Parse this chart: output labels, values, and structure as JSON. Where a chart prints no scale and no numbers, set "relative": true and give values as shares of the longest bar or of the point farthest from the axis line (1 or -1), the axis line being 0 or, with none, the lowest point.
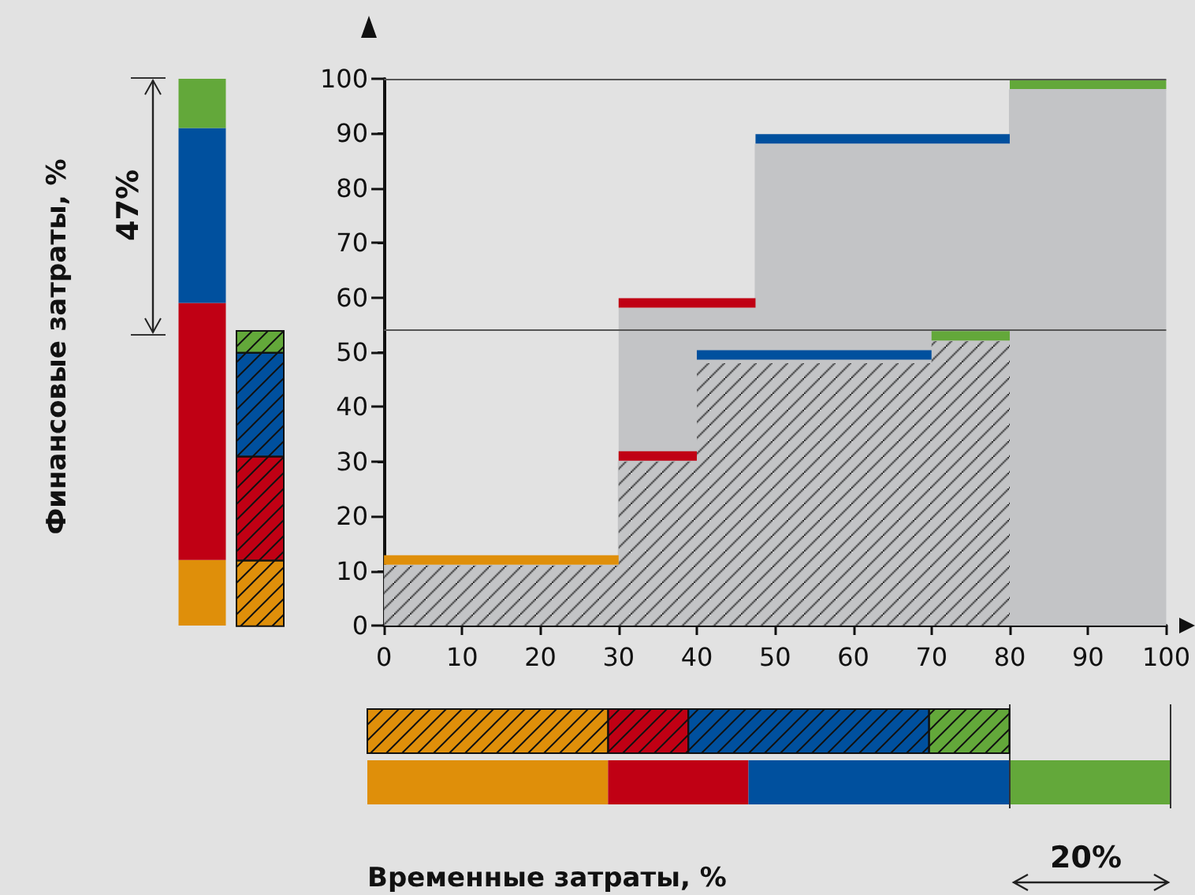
{
  "chart_data": [
    {
      "type": "area",
      "xlim": [
        0,
        100
      ],
      "xticks": [
        0,
        10,
        20,
        30,
        40,
        50,
        60,
        70,
        80,
        90,
        100
      ],
      "ylim": [
        0,
        100
      ],
      "yticks": [
        0,
        10,
        20,
        30,
        40,
        50,
        60,
        70,
        80,
        90,
        100
      ],
      "grid": false,
      "ref_lines": [
        {
          "axis": "y",
          "value": 100,
          "color": "#555555"
        },
        {
          "axis": "y",
          "value": 54,
          "color": "#555555"
        }
      ],
      "series": [
        {
          "type": "area",
          "x": [
            30,
            47.5,
            47.5,
            80,
            80,
            100
          ],
          "values": [
            58,
            58,
            88,
            88,
            98,
            98
          ],
          "color": "#c3c4c6"
        },
        {
          "type": "area",
          "x": [
            0,
            30,
            30,
            40,
            40,
            70,
            70,
            80
          ],
          "values": [
            11,
            11,
            30,
            30,
            48,
            48,
            52,
            52
          ],
          "color": "#c3c4c6"
        },
        {
          "type": "line",
          "x": [
            0,
            30
          ],
          "values": [
            12,
            12
          ],
          "color": "#df8f0a"
        },
        {
          "type": "line",
          "x": [
            30,
            40
          ],
          "values": [
            31,
            31
          ],
          "color": "#c00014"
        },
        {
          "type": "line",
          "x": [
            40,
            70
          ],
          "values": [
            49.5,
            49.5
          ],
          "color": "#00509e"
        },
        {
          "type": "line",
          "x": [
            70,
            80
          ],
          "values": [
            53,
            53
          ],
          "color": "#63a83a"
        },
        {
          "type": "line",
          "x": [
            30,
            47.5
          ],
          "values": [
            59,
            59
          ],
          "color": "#c00014"
        },
        {
          "type": "line",
          "x": [
            47.5,
            80
          ],
          "values": [
            89,
            89
          ],
          "color": "#00509e"
        },
        {
          "type": "line",
          "x": [
            80,
            100
          ],
          "values": [
            99,
            99
          ],
          "color": "#63a83a"
        }
      ]
    },
    {
      "type": "bar",
      "stacked": true,
      "relative": true,
      "ylabel": "Финансовые затраты, %",
      "categories": [
        null,
        null
      ],
      "annotations": [
        "47%"
      ],
      "series": [
        {
          "color": "#df8f0a",
          "values": [
            0.12,
            0.12
          ]
        },
        {
          "color": "#c00014",
          "values": [
            0.47,
            0.19
          ]
        },
        {
          "color": "#00509e",
          "values": [
            0.32,
            0.19
          ]
        },
        {
          "color": "#63a83a",
          "values": [
            0.09,
            0.04
          ]
        }
      ]
    },
    {
      "type": "bar",
      "stacked": true,
      "relative": true,
      "orientation": "horizontal",
      "xlabel": "Временные затраты, %",
      "categories": [
        null,
        null
      ],
      "annotations": [
        "20%"
      ],
      "ref_lines": [
        {
          "axis": "x",
          "value": 0.8,
          "color": "#333333"
        },
        {
          "axis": "x",
          "value": 1,
          "color": "#333333"
        }
      ],
      "series": [
        {
          "color": "#df8f0a",
          "values": [
            0.3,
            0.3
          ]
        },
        {
          "color": "#c00014",
          "values": [
            0.1,
            0.175
          ]
        },
        {
          "color": "#00509e",
          "values": [
            0.3,
            0.325
          ]
        },
        {
          "color": "#63a83a",
          "values": [
            0.1,
            0.2
          ]
        }
      ]
    }
  ]
}
